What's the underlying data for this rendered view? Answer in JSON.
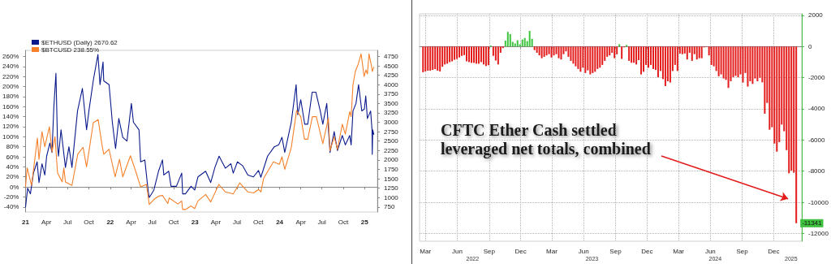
{
  "chart_data": [
    {
      "type": "line",
      "xlim": [
        "2021-01-01",
        "2025-02-25"
      ],
      "xticks": [
        {
          "value": "2021-01-01",
          "label": "21"
        },
        {
          "value": "2021-04-01",
          "label": "Apr"
        },
        {
          "value": "2021-07-01",
          "label": "Jul"
        },
        {
          "value": "2021-10-01",
          "label": "Oct"
        },
        {
          "value": "2022-01-01",
          "label": "22"
        },
        {
          "value": "2022-04-01",
          "label": "Apr"
        },
        {
          "value": "2022-07-01",
          "label": "Jul"
        },
        {
          "value": "2022-10-01",
          "label": "Oct"
        },
        {
          "value": "2023-01-01",
          "label": "23"
        },
        {
          "value": "2023-04-01",
          "label": "Apr"
        },
        {
          "value": "2023-07-01",
          "label": "Jul"
        },
        {
          "value": "2023-10-01",
          "label": "Oct"
        },
        {
          "value": "2024-01-01",
          "label": "24"
        },
        {
          "value": "2024-04-01",
          "label": "Apr"
        },
        {
          "value": "2024-07-01",
          "label": "Jul"
        },
        {
          "value": "2024-10-01",
          "label": "Oct"
        },
        {
          "value": "2025-01-01",
          "label": "25"
        }
      ],
      "ylim": [
        -50,
        272
      ],
      "yticks": [
        {
          "value": -40,
          "label": "-40%"
        },
        {
          "value": -20,
          "label": "-20%"
        },
        {
          "value": 0,
          "label": "0%"
        },
        {
          "value": 20,
          "label": "20%"
        },
        {
          "value": 40,
          "label": "40%"
        },
        {
          "value": 60,
          "label": "60%"
        },
        {
          "value": 80,
          "label": "80%"
        },
        {
          "value": 100,
          "label": "100%"
        },
        {
          "value": 120,
          "label": "120%"
        },
        {
          "value": 140,
          "label": "140%"
        },
        {
          "value": 160,
          "label": "160%"
        },
        {
          "value": 180,
          "label": "180%"
        },
        {
          "value": 200,
          "label": "200%"
        },
        {
          "value": 220,
          "label": "220%"
        },
        {
          "value": 240,
          "label": "240%"
        },
        {
          "value": 260,
          "label": "260%"
        }
      ],
      "y2lim": [
        617,
        4910
      ],
      "y2ticks": [
        750,
        1000,
        1250,
        1500,
        1750,
        2000,
        2250,
        2500,
        2750,
        3000,
        3250,
        3500,
        3750,
        4000,
        4250,
        4500,
        4750
      ],
      "legend": "top left",
      "series": [
        {
          "name": "$ETHUSD (Daily) 2670.62",
          "color": "#0a1a8c",
          "axis": "y2",
          "x": [
            "2021-01-01",
            "2021-01-10",
            "2021-01-22",
            "2021-02-04",
            "2021-02-20",
            "2021-02-28",
            "2021-03-13",
            "2021-03-25",
            "2021-04-02",
            "2021-04-16",
            "2021-04-25",
            "2021-05-03",
            "2021-05-12",
            "2021-05-19",
            "2021-05-23",
            "2021-06-03",
            "2021-06-22",
            "2021-07-07",
            "2021-07-20",
            "2021-08-13",
            "2021-09-03",
            "2021-09-21",
            "2021-10-01",
            "2021-10-21",
            "2021-11-09",
            "2021-11-18",
            "2021-12-01",
            "2021-12-04",
            "2021-12-27",
            "2022-01-10",
            "2022-01-24",
            "2022-02-07",
            "2022-02-24",
            "2022-03-14",
            "2022-04-02",
            "2022-04-11",
            "2022-05-05",
            "2022-05-12",
            "2022-05-30",
            "2022-06-13",
            "2022-06-18",
            "2022-07-08",
            "2022-07-28",
            "2022-08-14",
            "2022-08-20",
            "2022-09-10",
            "2022-09-20",
            "2022-10-13",
            "2022-11-05",
            "2022-11-09",
            "2022-11-21",
            "2022-12-15",
            "2022-12-31",
            "2023-01-14",
            "2023-02-16",
            "2023-03-10",
            "2023-03-28",
            "2023-04-15",
            "2023-05-12",
            "2023-06-05",
            "2023-06-15",
            "2023-07-03",
            "2023-07-25",
            "2023-08-17",
            "2023-09-10",
            "2023-10-02",
            "2023-10-12",
            "2023-11-10",
            "2023-12-09",
            "2023-12-28",
            "2024-01-11",
            "2024-01-23",
            "2024-02-20",
            "2024-03-12",
            "2024-03-19",
            "2024-04-01",
            "2024-04-18",
            "2024-05-01",
            "2024-05-20",
            "2024-06-05",
            "2024-06-24",
            "2024-07-05",
            "2024-07-22",
            "2024-08-05",
            "2024-08-23",
            "2024-09-06",
            "2024-09-27",
            "2024-10-10",
            "2024-10-29",
            "2024-11-04",
            "2024-11-12",
            "2024-11-25",
            "2024-12-06",
            "2024-12-20",
            "2024-12-31",
            "2025-01-06",
            "2025-01-13",
            "2025-01-27",
            "2025-02-02",
            "2025-02-03",
            "2025-02-05",
            "2025-02-10"
          ],
          "values": [
            740,
            1250,
            1100,
            1650,
            1950,
            1400,
            1900,
            1600,
            2100,
            2450,
            2200,
            3400,
            4300,
            2400,
            2100,
            2800,
            1800,
            2350,
            1800,
            3300,
            3900,
            2800,
            3300,
            4150,
            4800,
            4000,
            4600,
            4100,
            4000,
            3000,
            2300,
            3100,
            2600,
            2500,
            3500,
            3000,
            2800,
            1950,
            2000,
            1200,
            1000,
            1200,
            1700,
            2000,
            1600,
            1700,
            1300,
            1300,
            1650,
            1100,
            1100,
            1300,
            1200,
            1550,
            1700,
            1400,
            1800,
            2100,
            1780,
            1900,
            1650,
            1950,
            1850,
            1600,
            1550,
            1720,
            1540,
            2100,
            2350,
            2400,
            2600,
            2200,
            3000,
            4000,
            3200,
            3600,
            2950,
            2950,
            3800,
            3800,
            3300,
            2950,
            3500,
            2200,
            2750,
            2250,
            2650,
            2400,
            2650,
            2400,
            3300,
            3500,
            4000,
            3300,
            3350,
            3700,
            3100,
            3300,
            2800,
            2150,
            2800,
            2670
          ]
        },
        {
          "name": "$BTCUSD 238.55%",
          "color": "#f5812a",
          "x": [
            "2021-01-01",
            "2021-01-08",
            "2021-01-27",
            "2021-02-10",
            "2021-02-21",
            "2021-02-28",
            "2021-03-13",
            "2021-03-25",
            "2021-04-14",
            "2021-04-25",
            "2021-05-08",
            "2021-05-19",
            "2021-06-08",
            "2021-06-15",
            "2021-06-22",
            "2021-07-20",
            "2021-08-14",
            "2021-09-06",
            "2021-09-21",
            "2021-10-20",
            "2021-11-10",
            "2021-11-26",
            "2021-12-04",
            "2021-12-27",
            "2022-01-22",
            "2022-02-10",
            "2022-02-24",
            "2022-03-29",
            "2022-04-18",
            "2022-05-12",
            "2022-06-06",
            "2022-06-18",
            "2022-07-08",
            "2022-07-30",
            "2022-08-14",
            "2022-09-06",
            "2022-09-12",
            "2022-10-20",
            "2022-11-05",
            "2022-11-09",
            "2022-11-21",
            "2022-12-15",
            "2022-12-31",
            "2023-01-14",
            "2023-02-16",
            "2023-03-10",
            "2023-04-14",
            "2023-05-12",
            "2023-06-15",
            "2023-07-13",
            "2023-08-17",
            "2023-09-11",
            "2023-10-02",
            "2023-10-12",
            "2023-10-24",
            "2023-12-05",
            "2023-12-31",
            "2024-01-11",
            "2024-01-23",
            "2024-02-20",
            "2024-03-14",
            "2024-04-01",
            "2024-04-17",
            "2024-05-01",
            "2024-05-21",
            "2024-06-07",
            "2024-07-05",
            "2024-07-29",
            "2024-08-05",
            "2024-08-23",
            "2024-09-06",
            "2024-09-27",
            "2024-10-10",
            "2024-10-29",
            "2024-11-04",
            "2024-11-12",
            "2024-11-22",
            "2024-12-05",
            "2024-12-17",
            "2024-12-30",
            "2025-01-07",
            "2025-01-13",
            "2025-01-20",
            "2025-01-31",
            "2025-02-03",
            "2025-02-10"
          ],
          "values": [
            0,
            38,
            3,
            55,
            97,
            55,
            110,
            80,
            120,
            70,
            100,
            28,
            10,
            38,
            10,
            3,
            65,
            79,
            40,
            128,
            134,
            85,
            65,
            75,
            20,
            55,
            20,
            62,
            35,
            0,
            5,
            -35,
            -25,
            -18,
            -17,
            -33,
            -22,
            -34,
            -28,
            -45,
            -45,
            -38,
            -43,
            -28,
            -15,
            -30,
            5,
            -10,
            -14,
            8,
            -10,
            -12,
            -5,
            -10,
            17,
            50,
            45,
            60,
            35,
            78,
            152,
            140,
            95,
            95,
            140,
            140,
            86,
            137,
            72,
            100,
            75,
            125,
            105,
            150,
            140,
            203,
            230,
            245,
            265,
            220,
            233,
            225,
            265,
            240,
            230,
            239
          ]
        }
      ]
    },
    {
      "type": "bar",
      "grid": true,
      "xlim": [
        "2022-02-12",
        "2025-02-20"
      ],
      "xticks": [
        {
          "value": "2022-03-01",
          "label": "Mar"
        },
        {
          "value": "2022-06-01",
          "label": "Jun"
        },
        {
          "value": "2022-09-01",
          "label": "Sep"
        },
        {
          "value": "2022-12-01",
          "label": "Dec"
        },
        {
          "value": "2023-03-01",
          "label": "Mar"
        },
        {
          "value": "2023-06-01",
          "label": "Jun"
        },
        {
          "value": "2023-09-01",
          "label": "Sep"
        },
        {
          "value": "2023-12-01",
          "label": "Dec"
        },
        {
          "value": "2024-03-01",
          "label": "Mar"
        },
        {
          "value": "2024-06-01",
          "label": "Jun"
        },
        {
          "value": "2024-09-01",
          "label": "Sep"
        },
        {
          "value": "2024-12-01",
          "label": "Dec"
        }
      ],
      "x2lim": [
        "2022-02-12",
        "2025-02-20"
      ],
      "x2ticks": [
        {
          "value": "2022-07-15",
          "label": "2022"
        },
        {
          "value": "2023-06-25",
          "label": "2023"
        },
        {
          "value": "2024-06-15",
          "label": "2024"
        },
        {
          "value": "2025-01-20",
          "label": "2025"
        }
      ],
      "ylim": [
        -12500,
        2100
      ],
      "yticks": [
        -12000,
        -10000,
        -8000,
        -6000,
        -4000,
        -2000,
        0,
        2000
      ],
      "annotations": [
        "CFTC Ether Cash settled\nleveraged net totals, combined",
        {
          "text": "-11341",
          "x": "2025-02-04",
          "y": -11341
        }
      ],
      "x": [
        "2022-02-22",
        "2022-03-01",
        "2022-03-08",
        "2022-03-15",
        "2022-03-22",
        "2022-03-29",
        "2022-04-05",
        "2022-04-12",
        "2022-04-19",
        "2022-04-26",
        "2022-05-03",
        "2022-05-10",
        "2022-05-17",
        "2022-05-24",
        "2022-05-31",
        "2022-06-07",
        "2022-06-14",
        "2022-06-21",
        "2022-06-28",
        "2022-07-05",
        "2022-07-12",
        "2022-07-19",
        "2022-07-26",
        "2022-08-02",
        "2022-08-09",
        "2022-08-16",
        "2022-08-23",
        "2022-08-30",
        "2022-09-06",
        "2022-09-13",
        "2022-09-20",
        "2022-09-27",
        "2022-10-04",
        "2022-10-11",
        "2022-10-18",
        "2022-10-25",
        "2022-11-01",
        "2022-11-08",
        "2022-11-15",
        "2022-11-22",
        "2022-11-29",
        "2022-12-06",
        "2022-12-13",
        "2022-12-20",
        "2022-12-27",
        "2023-01-03",
        "2023-01-10",
        "2023-01-17",
        "2023-01-24",
        "2023-01-31",
        "2023-02-07",
        "2023-02-14",
        "2023-02-21",
        "2023-02-28",
        "2023-03-07",
        "2023-03-14",
        "2023-03-21",
        "2023-03-28",
        "2023-04-04",
        "2023-04-11",
        "2023-04-18",
        "2023-04-25",
        "2023-05-02",
        "2023-05-09",
        "2023-05-16",
        "2023-05-23",
        "2023-05-30",
        "2023-06-06",
        "2023-06-13",
        "2023-06-20",
        "2023-06-27",
        "2023-07-04",
        "2023-07-11",
        "2023-07-18",
        "2023-07-25",
        "2023-08-01",
        "2023-08-08",
        "2023-08-15",
        "2023-08-22",
        "2023-08-29",
        "2023-09-05",
        "2023-09-12",
        "2023-09-19",
        "2023-09-26",
        "2023-10-03",
        "2023-10-10",
        "2023-10-17",
        "2023-10-24",
        "2023-10-31",
        "2023-11-07",
        "2023-11-14",
        "2023-11-21",
        "2023-11-28",
        "2023-12-05",
        "2023-12-12",
        "2023-12-19",
        "2023-12-26",
        "2024-01-02",
        "2024-01-09",
        "2024-01-16",
        "2024-01-23",
        "2024-01-30",
        "2024-02-06",
        "2024-02-13",
        "2024-02-20",
        "2024-02-27",
        "2024-03-05",
        "2024-03-12",
        "2024-03-19",
        "2024-03-26",
        "2024-04-02",
        "2024-04-09",
        "2024-04-16",
        "2024-04-23",
        "2024-04-30",
        "2024-05-07",
        "2024-05-14",
        "2024-05-21",
        "2024-05-28",
        "2024-06-04",
        "2024-06-11",
        "2024-06-18",
        "2024-06-25",
        "2024-07-02",
        "2024-07-09",
        "2024-07-16",
        "2024-07-23",
        "2024-07-30",
        "2024-08-06",
        "2024-08-13",
        "2024-08-20",
        "2024-08-27",
        "2024-09-03",
        "2024-09-10",
        "2024-09-17",
        "2024-09-24",
        "2024-10-01",
        "2024-10-08",
        "2024-10-15",
        "2024-10-22",
        "2024-10-29",
        "2024-11-05",
        "2024-11-12",
        "2024-11-19",
        "2024-11-26",
        "2024-12-03",
        "2024-12-10",
        "2024-12-17",
        "2024-12-24",
        "2024-12-31",
        "2025-01-07",
        "2025-01-14",
        "2025-01-21",
        "2025-01-28",
        "2025-02-04"
      ],
      "values": [
        -1650,
        -1600,
        -1550,
        -1550,
        -1500,
        -1450,
        -1550,
        -1600,
        -1300,
        -1150,
        -1100,
        -1000,
        -950,
        -850,
        -800,
        -700,
        -600,
        -550,
        -950,
        -1000,
        -1050,
        -1050,
        -1100,
        -1100,
        -1000,
        -1150,
        -1250,
        -1200,
        60,
        -600,
        -900,
        -1150,
        -400,
        -100,
        380,
        940,
        800,
        300,
        200,
        400,
        150,
        450,
        550,
        350,
        1000,
        500,
        -230,
        -400,
        -570,
        -750,
        -660,
        -570,
        -490,
        -700,
        -570,
        -490,
        -750,
        -830,
        -490,
        -310,
        -660,
        -920,
        -1100,
        -1270,
        -1440,
        -1620,
        -1360,
        -1700,
        -1530,
        -1790,
        -1700,
        -1620,
        -1440,
        -1360,
        -1180,
        -920,
        -660,
        -570,
        -400,
        -750,
        -500,
        150,
        -800,
        -50,
        100,
        -920,
        -1040,
        -1040,
        -1150,
        -870,
        -1790,
        -1620,
        -1180,
        -1360,
        -1180,
        -1440,
        -1500,
        -1970,
        -1570,
        -2090,
        -2540,
        -2230,
        -2310,
        -1570,
        -1180,
        -1570,
        -450,
        -490,
        -450,
        -830,
        -400,
        -920,
        -490,
        -830,
        -750,
        -750,
        -50,
        -20,
        -570,
        -1180,
        -1270,
        -1570,
        -1910,
        -1790,
        -2050,
        -2140,
        -2660,
        -2230,
        -1970,
        -1880,
        -1970,
        -1790,
        -2310,
        -1700,
        -2570,
        -2230,
        -2400,
        -2050,
        -2230,
        -2000,
        -2300,
        -4310,
        -3620,
        -5340,
        -5180,
        -6230,
        -6750,
        -6140,
        -5010,
        -5440,
        -6650,
        -8140,
        -7960,
        -8100,
        -11341
      ],
      "colors": [
        "#e41b1b",
        "#e41b1b",
        "#e41b1b",
        "#e41b1b",
        "#e41b1b",
        "#e41b1b",
        "#e41b1b",
        "#e41b1b",
        "#e41b1b",
        "#e41b1b",
        "#e41b1b",
        "#e41b1b",
        "#e41b1b",
        "#e41b1b",
        "#e41b1b",
        "#e41b1b",
        "#e41b1b",
        "#e41b1b",
        "#e41b1b",
        "#e41b1b",
        "#e41b1b",
        "#e41b1b",
        "#e41b1b",
        "#e41b1b",
        "#e41b1b",
        "#e41b1b",
        "#e41b1b",
        "#e41b1b",
        "#3cc43c",
        "#e41b1b",
        "#e41b1b",
        "#e41b1b",
        "#e41b1b",
        "#e41b1b",
        "#3cc43c",
        "#3cc43c",
        "#3cc43c",
        "#3cc43c",
        "#3cc43c",
        "#3cc43c",
        "#3cc43c",
        "#3cc43c",
        "#3cc43c",
        "#3cc43c",
        "#3cc43c",
        "#3cc43c",
        "#e41b1b",
        "#e41b1b",
        "#e41b1b",
        "#e41b1b",
        "#e41b1b",
        "#e41b1b",
        "#e41b1b",
        "#e41b1b",
        "#e41b1b",
        "#e41b1b",
        "#e41b1b",
        "#e41b1b",
        "#e41b1b",
        "#e41b1b",
        "#e41b1b",
        "#e41b1b",
        "#e41b1b",
        "#e41b1b",
        "#e41b1b",
        "#e41b1b",
        "#e41b1b",
        "#e41b1b",
        "#e41b1b",
        "#e41b1b",
        "#e41b1b",
        "#e41b1b",
        "#e41b1b",
        "#e41b1b",
        "#e41b1b",
        "#e41b1b",
        "#e41b1b",
        "#e41b1b",
        "#e41b1b",
        "#e41b1b",
        "#e41b1b",
        "#3cc43c",
        "#e41b1b",
        "#e41b1b",
        "#3cc43c",
        "#e41b1b",
        "#e41b1b",
        "#e41b1b",
        "#e41b1b",
        "#e41b1b",
        "#e41b1b",
        "#e41b1b",
        "#e41b1b",
        "#e41b1b",
        "#e41b1b",
        "#e41b1b",
        "#e41b1b",
        "#e41b1b",
        "#e41b1b",
        "#e41b1b",
        "#e41b1b",
        "#e41b1b",
        "#e41b1b",
        "#e41b1b",
        "#e41b1b",
        "#e41b1b",
        "#e41b1b",
        "#e41b1b",
        "#e41b1b",
        "#e41b1b",
        "#e41b1b",
        "#e41b1b",
        "#e41b1b",
        "#e41b1b",
        "#e41b1b",
        "#e41b1b",
        "#e41b1b",
        "#e41b1b",
        "#e41b1b",
        "#e41b1b",
        "#e41b1b",
        "#e41b1b",
        "#e41b1b",
        "#e41b1b",
        "#e41b1b",
        "#e41b1b",
        "#e41b1b",
        "#e41b1b",
        "#e41b1b",
        "#e41b1b",
        "#e41b1b",
        "#e41b1b",
        "#e41b1b",
        "#e41b1b",
        "#e41b1b",
        "#e41b1b",
        "#e41b1b",
        "#e41b1b",
        "#e41b1b",
        "#e41b1b",
        "#e41b1b",
        "#e41b1b",
        "#e41b1b",
        "#e41b1b",
        "#e41b1b",
        "#e41b1b",
        "#e41b1b",
        "#e41b1b",
        "#e41b1b",
        "#e41b1b",
        "#e41b1b",
        "#e41b1b",
        "#e41b1b",
        "#e41b1b",
        "#e41b1b"
      ]
    }
  ]
}
